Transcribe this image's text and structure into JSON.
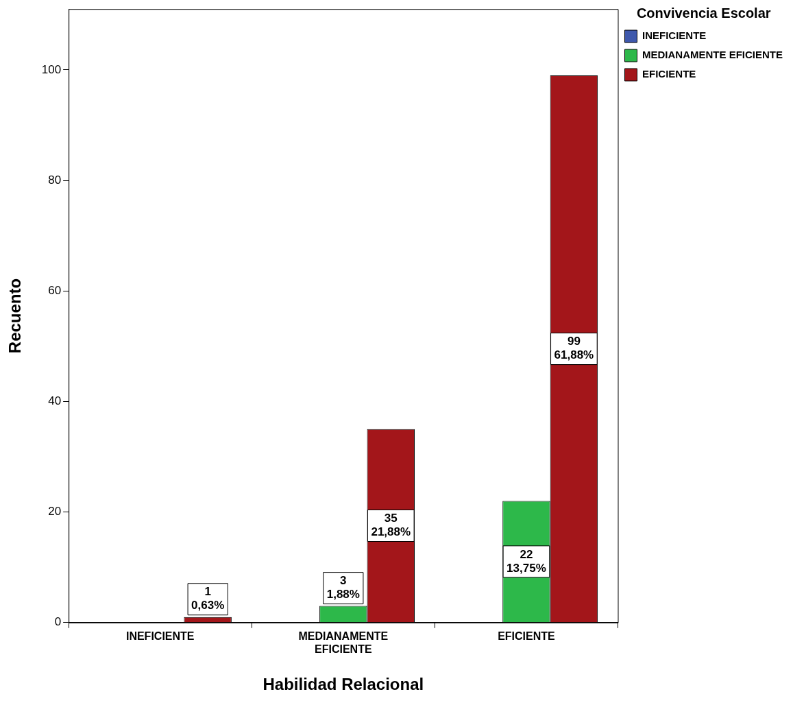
{
  "chart_data": {
    "type": "bar",
    "xlabel": "Habilidad Relacional",
    "ylabel": "Recuento",
    "legend_title": "Convivencia Escolar",
    "categories": [
      "INEFICIENTE",
      "MEDIANAMENTE EFICIENTE",
      "EFICIENTE"
    ],
    "series": [
      {
        "name": "INEFICIENTE",
        "color": "#3e58ac",
        "values": [
          null,
          null,
          null
        ]
      },
      {
        "name": "MEDIANAMENTE EFICIENTE",
        "color": "#2db84a",
        "values": [
          null,
          3,
          22
        ],
        "value_labels": [
          null,
          "3\n1,88%",
          "22\n13,75%"
        ]
      },
      {
        "name": "EFICIENTE",
        "color": "#a3161a",
        "values": [
          1,
          35,
          99
        ],
        "value_labels": [
          "1\n0,63%",
          "35\n21,88%",
          "99\n61,88%"
        ]
      }
    ],
    "ylim": [
      0,
      111
    ],
    "yticks": [
      0,
      20,
      40,
      60,
      80,
      100
    ],
    "grid": false,
    "legend": "top right"
  }
}
